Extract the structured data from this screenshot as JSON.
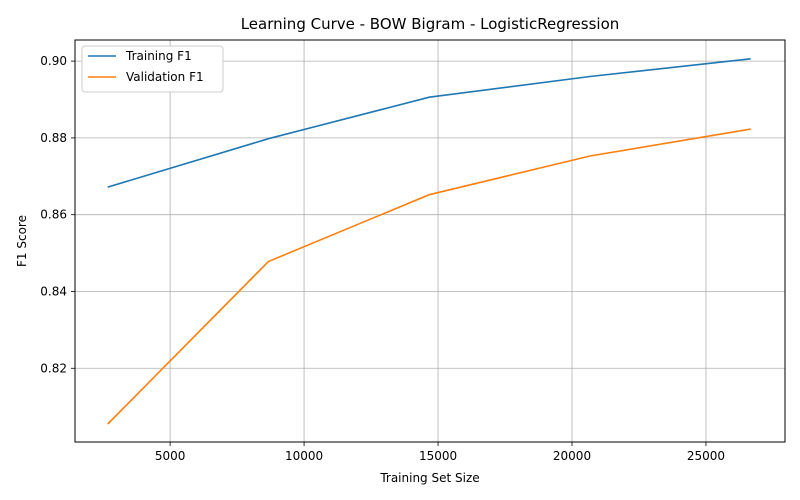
{
  "chart_data": {
    "type": "line",
    "title": "Learning Curve - BOW Bigram - LogisticRegression",
    "xlabel": "Training Set Size",
    "ylabel": "F1 Score",
    "xlim": [
      1450,
      27950
    ],
    "ylim": [
      0.8008,
      0.9055
    ],
    "xticks": [
      5000,
      10000,
      15000,
      20000,
      25000
    ],
    "xtick_labels": [
      "5000",
      "10000",
      "15000",
      "20000",
      "25000"
    ],
    "yticks": [
      0.82,
      0.84,
      0.86,
      0.88,
      0.9
    ],
    "ytick_labels": [
      "0.82",
      "0.84",
      "0.86",
      "0.88",
      "0.90"
    ],
    "grid": true,
    "legend_position": "top-left",
    "x": [
      2670,
      8670,
      14670,
      20670,
      26670
    ],
    "series": [
      {
        "name": "Training F1",
        "color": "#1f77b4",
        "values": [
          0.8672,
          0.8798,
          0.8906,
          0.896,
          0.9006
        ]
      },
      {
        "name": "Validation F1",
        "color": "#ff7f0e",
        "values": [
          0.8055,
          0.8478,
          0.8652,
          0.8753,
          0.8823
        ]
      }
    ]
  }
}
